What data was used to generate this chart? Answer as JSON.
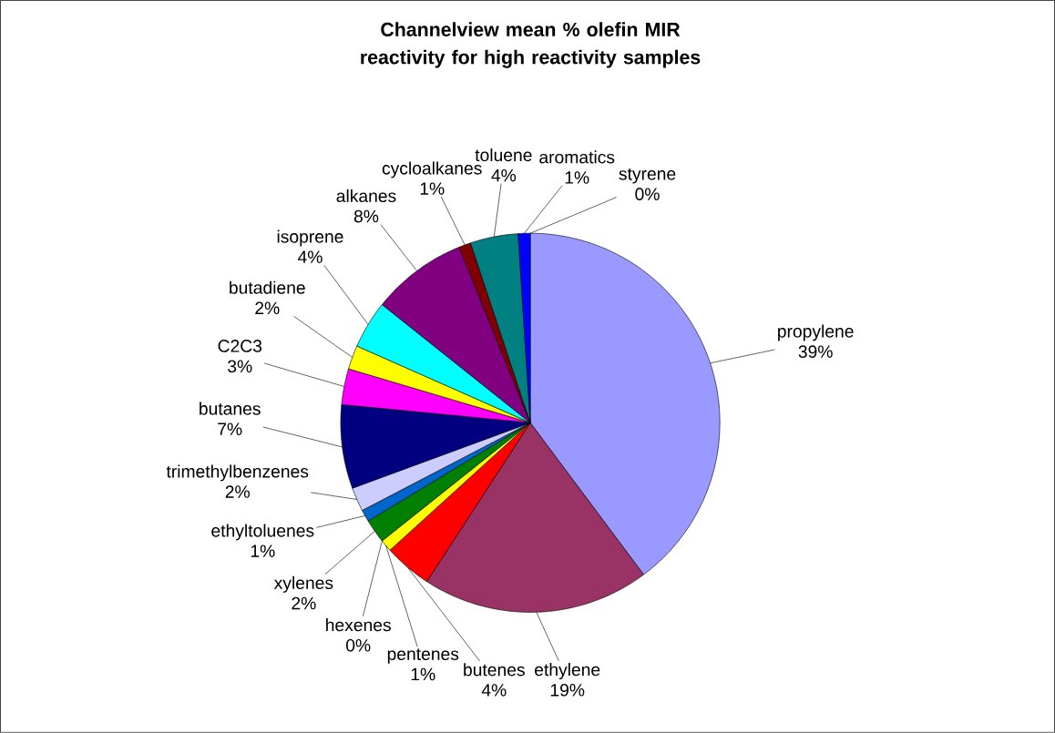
{
  "chart_data": {
    "type": "pie",
    "title": "Channelview mean % olefin MIR reactivity for high reactivity samples",
    "categories": [
      "propylene",
      "ethylene",
      "butenes",
      "pentenes",
      "hexenes",
      "xylenes",
      "ethyltoluenes",
      "trimethylbenzenes",
      "butanes",
      "C2C3",
      "butadiene",
      "isoprene",
      "alkanes",
      "cycloalkanes",
      "toluene",
      "aromatics",
      "styrene"
    ],
    "values": [
      39,
      19,
      4,
      1,
      0,
      2,
      1,
      2,
      7,
      3,
      2,
      4,
      8,
      1,
      4,
      1,
      0
    ],
    "value_labels": [
      "39%",
      "19%",
      "4%",
      "1%",
      "0%",
      "2%",
      "1%",
      "2%",
      "7%",
      "3%",
      "2%",
      "4%",
      "8%",
      "1%",
      "4%",
      "1%",
      "0%"
    ],
    "colors": [
      "#9999ff",
      "#993366",
      "#ff0000",
      "#ffff00",
      "#ffffcc",
      "#008000",
      "#0066cc",
      "#ccccff",
      "#000080",
      "#ff00ff",
      "#ffff00",
      "#00ffff",
      "#800080",
      "#800000",
      "#008080",
      "#0000ff",
      "#00ccff"
    ]
  }
}
